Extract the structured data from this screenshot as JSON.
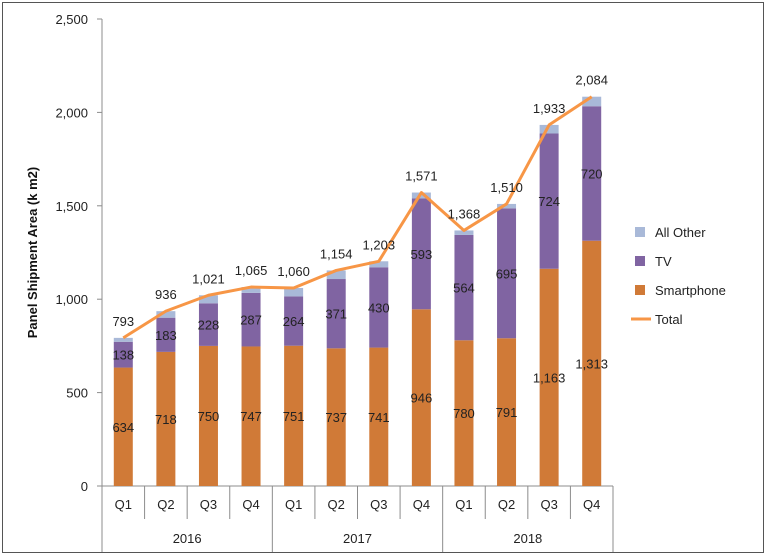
{
  "chart_data": {
    "type": "bar",
    "stacked": true,
    "ylabel": "Panel Shipment Area (k m2)",
    "ylim": [
      0,
      2500
    ],
    "yticks": [
      "0",
      "500",
      "1,000",
      "1,500",
      "2,000",
      "2,500"
    ],
    "ytick_values": [
      0,
      500,
      1000,
      1500,
      2000,
      2500
    ],
    "categories": [
      "Q1",
      "Q2",
      "Q3",
      "Q4",
      "Q1",
      "Q2",
      "Q3",
      "Q4",
      "Q1",
      "Q2",
      "Q3",
      "Q4"
    ],
    "groups": [
      {
        "label": "2016",
        "count": 4
      },
      {
        "label": "2017",
        "count": 4
      },
      {
        "label": "2018",
        "count": 4
      }
    ],
    "series": [
      {
        "name": "Smartphone",
        "type": "bar",
        "color": "#D07A37",
        "values": [
          634,
          718,
          750,
          747,
          751,
          737,
          741,
          946,
          780,
          791,
          1163,
          1313
        ],
        "labels": [
          "634",
          "718",
          "750",
          "747",
          "751",
          "737",
          "741",
          "946",
          "780",
          "791",
          "1,163",
          "1,313"
        ]
      },
      {
        "name": "TV",
        "type": "bar",
        "color": "#8064A2",
        "values": [
          138,
          183,
          228,
          287,
          264,
          371,
          430,
          593,
          564,
          695,
          724,
          720
        ],
        "labels": [
          "138",
          "183",
          "228",
          "287",
          "264",
          "371",
          "430",
          "593",
          "564",
          "695",
          "724",
          "720"
        ]
      },
      {
        "name": "All Other",
        "type": "bar",
        "color": "#A9B9D8",
        "values": [
          21,
          35,
          43,
          31,
          45,
          46,
          32,
          32,
          24,
          24,
          46,
          51
        ]
      },
      {
        "name": "Total",
        "type": "line",
        "color": "#F79646",
        "values": [
          793,
          936,
          1021,
          1065,
          1060,
          1154,
          1203,
          1571,
          1368,
          1510,
          1933,
          2084
        ],
        "labels": [
          "793",
          "936",
          "1,021",
          "1,065",
          "1,060",
          "1,154",
          "1,203",
          "1,571",
          "1,368",
          "1,510",
          "1,933",
          "2,084"
        ]
      }
    ],
    "legend": {
      "position": "right",
      "items": [
        {
          "name": "All Other",
          "color": "#A9B9D8",
          "kind": "box"
        },
        {
          "name": "TV",
          "color": "#8064A2",
          "kind": "box"
        },
        {
          "name": "Smartphone",
          "color": "#D07A37",
          "kind": "box"
        },
        {
          "name": "Total",
          "color": "#F79646",
          "kind": "line"
        }
      ]
    },
    "grid": false
  }
}
